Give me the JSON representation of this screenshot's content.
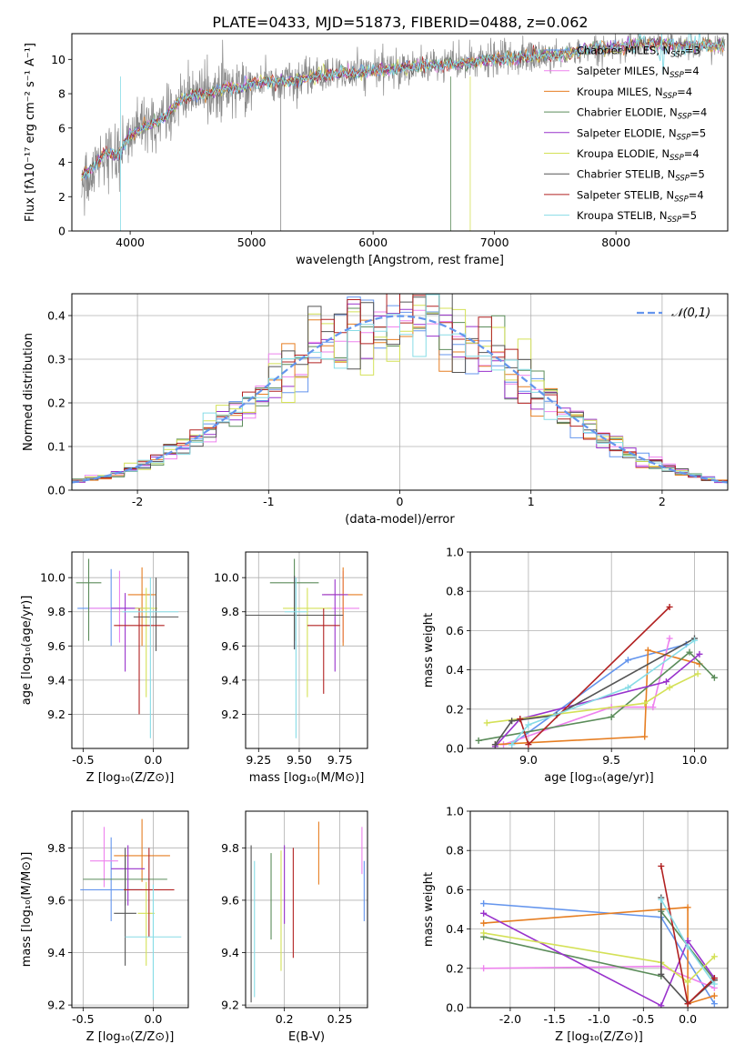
{
  "figure": {
    "title": "PLATE=0433, MJD=51873, FIBERID=0488, z=0.062"
  },
  "legend_colors": [
    "#6495ed",
    "#ee82ee",
    "#e67e22",
    "#5b8c5a",
    "#9932cc",
    "#d4e157",
    "#555555",
    "#b22222",
    "#87dce6"
  ],
  "chart_data": [
    {
      "id": "spectrum",
      "type": "line",
      "title": "PLATE=0433, MJD=51873, FIBERID=0488, z=0.062",
      "xlabel": "wavelength [Angstrom, rest frame]",
      "ylabel": "Flux [fλ10⁻¹⁷ erg cm⁻² s⁻¹ A⁻¹]",
      "xlim": [
        3520,
        8920
      ],
      "ylim": [
        0,
        11.5
      ],
      "xticks": [
        4000,
        5000,
        6000,
        7000,
        8000
      ],
      "yticks": [
        0,
        2,
        4,
        6,
        8,
        10
      ],
      "grid": false,
      "legend_position": "right",
      "legend": [
        "Chabrier MILES, N_SSP=3",
        "Salpeter MILES, N_SSP=4",
        "Kroupa MILES, N_SSP=4",
        "Chabrier ELODIE, N_SSP=4",
        "Salpeter ELODIE, N_SSP=5",
        "Kroupa ELODIE, N_SSP=4",
        "Chabrier STELIB, N_SSP=5",
        "Salpeter STELIB, N_SSP=4",
        "Kroupa STELIB, N_SSP=5"
      ],
      "observed": {
        "wavelength": [
          3600,
          3700,
          3800,
          3900,
          4000,
          4100,
          4200,
          4300,
          4400,
          4500,
          4600,
          4700,
          4800,
          4900,
          5000,
          5200,
          5400,
          5600,
          5800,
          6000,
          6200,
          6400,
          6600,
          6800,
          7000,
          7200,
          7400,
          7600,
          7800,
          8000,
          8200,
          8400,
          8600,
          8800
        ],
        "flux": [
          3.2,
          3.8,
          4.6,
          4.4,
          5.6,
          6.0,
          6.3,
          6.7,
          7.5,
          7.9,
          8.0,
          8.1,
          8.4,
          8.3,
          8.6,
          8.7,
          8.8,
          9.1,
          9.2,
          9.3,
          9.5,
          9.6,
          9.7,
          9.8,
          10.0,
          10.1,
          10.2,
          10.3,
          10.6,
          10.7,
          10.9,
          10.9,
          10.8,
          10.8
        ]
      }
    },
    {
      "id": "residuals",
      "type": "histogram",
      "xlabel": "(data-model)/error",
      "ylabel": "Normed distribution",
      "xlim": [
        -2.5,
        2.5
      ],
      "ylim": [
        0,
        0.45
      ],
      "xticks": [
        -2,
        -1,
        0,
        1,
        2
      ],
      "yticks": [
        0.0,
        0.1,
        0.2,
        0.3,
        0.4
      ],
      "grid": true,
      "legend_position": "top-right",
      "legend": [
        "𝒩(0,1)"
      ],
      "bin_width": 0.1,
      "model_curve": "normal, mean 0, sigma 1"
    },
    {
      "id": "age-vs-Z",
      "type": "errorbar",
      "xlabel": "Z [log₁₀(Z/Z⊙)]",
      "ylabel": "age  [log₁₀(age/yr)]",
      "xlim": [
        -0.58,
        0.25
      ],
      "ylim": [
        9.0,
        10.15
      ],
      "xticks": [
        -0.5,
        0.0
      ],
      "yticks": [
        9.2,
        9.4,
        9.6,
        9.8,
        10.0
      ],
      "grid": true,
      "series": [
        {
          "x": -0.3,
          "y": 9.82,
          "xerr": 0.24,
          "yerr_low": 0.22,
          "yerr_high": 0.23
        },
        {
          "x": -0.24,
          "y": 9.82,
          "xerr": 0.22,
          "yerr_low": 0.2,
          "yerr_high": 0.22
        },
        {
          "x": -0.08,
          "y": 9.9,
          "xerr": 0.1,
          "yerr_low": 0.3,
          "yerr_high": 0.16
        },
        {
          "x": -0.46,
          "y": 9.97,
          "xerr": 0.09,
          "yerr_low": 0.34,
          "yerr_high": 0.14
        },
        {
          "x": -0.2,
          "y": 9.82,
          "xerr": 0.1,
          "yerr_low": 0.37,
          "yerr_high": 0.09
        },
        {
          "x": -0.05,
          "y": 9.82,
          "xerr": 0.08,
          "yerr_low": 0.52,
          "yerr_high": 0.12
        },
        {
          "x": 0.02,
          "y": 9.77,
          "xerr": 0.16,
          "yerr_low": 0.2,
          "yerr_high": 0.23
        },
        {
          "x": -0.1,
          "y": 9.72,
          "xerr": 0.18,
          "yerr_low": 0.52,
          "yerr_high": 0.1
        },
        {
          "x": -0.02,
          "y": 9.8,
          "xerr": 0.2,
          "yerr_low": 0.74,
          "yerr_high": 0.2
        }
      ]
    },
    {
      "id": "age-vs-mass",
      "type": "errorbar",
      "xlabel": "mass [log₁₀(M/M⊙)]",
      "ylabel": "",
      "xlim": [
        9.17,
        9.92
      ],
      "ylim": [
        9.0,
        10.15
      ],
      "xticks": [
        9.25,
        9.5,
        9.75
      ],
      "yticks": [
        9.2,
        9.4,
        9.6,
        9.8,
        10.0
      ],
      "grid": true,
      "series": [
        {
          "x": 9.47,
          "y": 9.78,
          "xerr": 0.17,
          "yerr_low": 0.2,
          "yerr_high": 0.23
        },
        {
          "x": 9.77,
          "y": 9.82,
          "xerr": 0.1,
          "yerr_low": 0.2,
          "yerr_high": 0.22
        },
        {
          "x": 9.77,
          "y": 9.9,
          "xerr": 0.12,
          "yerr_low": 0.3,
          "yerr_high": 0.16
        },
        {
          "x": 9.47,
          "y": 9.97,
          "xerr": 0.15,
          "yerr_low": 0.34,
          "yerr_high": 0.14
        },
        {
          "x": 9.72,
          "y": 9.9,
          "xerr": 0.08,
          "yerr_low": 0.45,
          "yerr_high": 0.09
        },
        {
          "x": 9.55,
          "y": 9.82,
          "xerr": 0.15,
          "yerr_low": 0.52,
          "yerr_high": 0.12
        },
        {
          "x": 9.47,
          "y": 9.78,
          "xerr": 0.3,
          "yerr_low": 0.2,
          "yerr_high": 0.23
        },
        {
          "x": 9.65,
          "y": 9.72,
          "xerr": 0.1,
          "yerr_low": 0.4,
          "yerr_high": 0.1
        },
        {
          "x": 9.48,
          "y": 9.8,
          "xerr": 0.07,
          "yerr_low": 0.74,
          "yerr_high": 0.2
        }
      ]
    },
    {
      "id": "weight-vs-age",
      "type": "line",
      "xlabel": "age  [log₁₀(age/yr)]",
      "ylabel": "mass weight",
      "xlim": [
        8.65,
        10.2
      ],
      "ylim": [
        0,
        1.0
      ],
      "xticks": [
        9.0,
        9.5,
        10.0
      ],
      "yticks": [
        0.0,
        0.2,
        0.4,
        0.6,
        0.8,
        1.0
      ],
      "grid": true,
      "series": [
        {
          "x": [
            8.9,
            9.6,
            9.95
          ],
          "y": [
            0.02,
            0.45,
            0.53
          ]
        },
        {
          "x": [
            8.85,
            9.5,
            9.75,
            9.85
          ],
          "y": [
            0.02,
            0.21,
            0.21,
            0.56
          ]
        },
        {
          "x": [
            8.8,
            9.7,
            9.72,
            10.03
          ],
          "y": [
            0.02,
            0.06,
            0.5,
            0.43
          ]
        },
        {
          "x": [
            8.7,
            9.5,
            9.97,
            10.12
          ],
          "y": [
            0.04,
            0.16,
            0.49,
            0.36
          ]
        },
        {
          "x": [
            8.8,
            8.95,
            9.83,
            10.03
          ],
          "y": [
            0.01,
            0.15,
            0.34,
            0.48
          ]
        },
        {
          "x": [
            8.75,
            9.7,
            9.85,
            10.02
          ],
          "y": [
            0.13,
            0.23,
            0.31,
            0.38
          ]
        },
        {
          "x": [
            8.8,
            8.9,
            9.17,
            10.0
          ],
          "y": [
            0.02,
            0.14,
            0.17,
            0.56
          ]
        },
        {
          "x": [
            8.95,
            9.0,
            9.85
          ],
          "y": [
            0.15,
            0.02,
            0.72
          ]
        },
        {
          "x": [
            8.9,
            9.0,
            9.6,
            10.0
          ],
          "y": [
            0.02,
            0.12,
            0.31,
            0.55
          ]
        }
      ]
    },
    {
      "id": "mass-vs-Z",
      "type": "errorbar",
      "xlabel": "Z [log₁₀(Z/Z⊙)]",
      "ylabel": "mass [log₁₀(M/M⊙)]",
      "xlim": [
        -0.58,
        0.25
      ],
      "ylim": [
        9.19,
        9.94
      ],
      "xticks": [
        -0.5,
        0.0
      ],
      "yticks": [
        9.2,
        9.4,
        9.6,
        9.8
      ],
      "grid": true,
      "series": [
        {
          "x": -0.3,
          "y": 9.64,
          "xerr": 0.22,
          "yerr_low": 0.12,
          "yerr_high": 0.2
        },
        {
          "x": -0.35,
          "y": 9.75,
          "xerr": 0.1,
          "yerr_low": 0.1,
          "yerr_high": 0.13
        },
        {
          "x": -0.08,
          "y": 9.77,
          "xerr": 0.2,
          "yerr_low": 0.1,
          "yerr_high": 0.14
        },
        {
          "x": -0.2,
          "y": 9.68,
          "xerr": 0.3,
          "yerr_low": 0.1,
          "yerr_high": 0.09
        },
        {
          "x": -0.18,
          "y": 9.72,
          "xerr": 0.12,
          "yerr_low": 0.14,
          "yerr_high": 0.09
        },
        {
          "x": -0.05,
          "y": 9.55,
          "xerr": 0.06,
          "yerr_low": 0.2,
          "yerr_high": 0.12
        },
        {
          "x": -0.2,
          "y": 9.55,
          "xerr": 0.08,
          "yerr_low": 0.2,
          "yerr_high": 0.25
        },
        {
          "x": -0.03,
          "y": 9.64,
          "xerr": 0.18,
          "yerr_low": 0.18,
          "yerr_high": 0.16
        },
        {
          "x": 0.0,
          "y": 9.46,
          "xerr": 0.2,
          "yerr_low": 0.24,
          "yerr_high": 0.2
        }
      ]
    },
    {
      "id": "mass-vs-ebv",
      "type": "errorbar",
      "xlabel": "E(B-V)",
      "ylabel": "",
      "xlim": [
        0.165,
        0.275
      ],
      "ylim": [
        9.19,
        9.94
      ],
      "xticks": [
        0.2,
        0.25
      ],
      "yticks": [
        9.2,
        9.4,
        9.6,
        9.8
      ],
      "grid": true,
      "series": [
        {
          "x": 0.272,
          "y": 9.6,
          "yerr_low": 0.08,
          "yerr_high": 0.15
        },
        {
          "x": 0.27,
          "y": 9.8,
          "yerr_low": 0.1,
          "yerr_high": 0.08
        },
        {
          "x": 0.231,
          "y": 9.78,
          "yerr_low": 0.12,
          "yerr_high": 0.12
        },
        {
          "x": 0.188,
          "y": 9.62,
          "yerr_low": 0.17,
          "yerr_high": 0.16
        },
        {
          "x": 0.2,
          "y": 9.66,
          "yerr_low": 0.15,
          "yerr_high": 0.15
        },
        {
          "x": 0.197,
          "y": 9.56,
          "yerr_low": 0.23,
          "yerr_high": 0.23
        },
        {
          "x": 0.17,
          "y": 9.51,
          "yerr_low": 0.3,
          "yerr_high": 0.3
        },
        {
          "x": 0.208,
          "y": 9.58,
          "yerr_low": 0.2,
          "yerr_high": 0.22
        },
        {
          "x": 0.173,
          "y": 9.49,
          "yerr_low": 0.26,
          "yerr_high": 0.26
        }
      ]
    },
    {
      "id": "weight-vs-Z",
      "type": "line",
      "xlabel": "Z [log₁₀(Z/Z⊙)]",
      "ylabel": "mass weight",
      "xlim": [
        -2.45,
        0.45
      ],
      "ylim": [
        0,
        1.0
      ],
      "xticks": [
        -2.0,
        -1.5,
        -1.0,
        -0.5,
        0.0
      ],
      "yticks": [
        0.0,
        0.2,
        0.4,
        0.6,
        0.8,
        1.0
      ],
      "grid": true,
      "series": [
        {
          "x": [
            -2.3,
            -0.3,
            0.3
          ],
          "y": [
            0.53,
            0.46,
            0.02
          ]
        },
        {
          "x": [
            -2.3,
            -0.3,
            0.3
          ],
          "y": [
            0.2,
            0.21,
            0.1
          ]
        },
        {
          "x": [
            -2.3,
            0.0,
            0.0,
            0.3
          ],
          "y": [
            0.43,
            0.51,
            0.02,
            0.06
          ]
        },
        {
          "x": [
            -2.3,
            -0.3,
            -0.3,
            0.3
          ],
          "y": [
            0.36,
            0.16,
            0.49,
            0.14
          ]
        },
        {
          "x": [
            -2.3,
            -0.3,
            0.0,
            0.3
          ],
          "y": [
            0.48,
            0.01,
            0.34,
            0.15
          ]
        },
        {
          "x": [
            -2.3,
            -0.3,
            0.0,
            0.3
          ],
          "y": [
            0.38,
            0.23,
            0.13,
            0.26
          ]
        },
        {
          "x": [
            -0.3,
            -0.3,
            0.0,
            0.3
          ],
          "y": [
            0.56,
            0.17,
            0.02,
            0.14
          ]
        },
        {
          "x": [
            -0.3,
            0.0,
            0.3
          ],
          "y": [
            0.72,
            0.02,
            0.15
          ]
        },
        {
          "x": [
            -0.3,
            0.0,
            0.3
          ],
          "y": [
            0.55,
            0.31,
            0.12
          ]
        }
      ]
    }
  ]
}
